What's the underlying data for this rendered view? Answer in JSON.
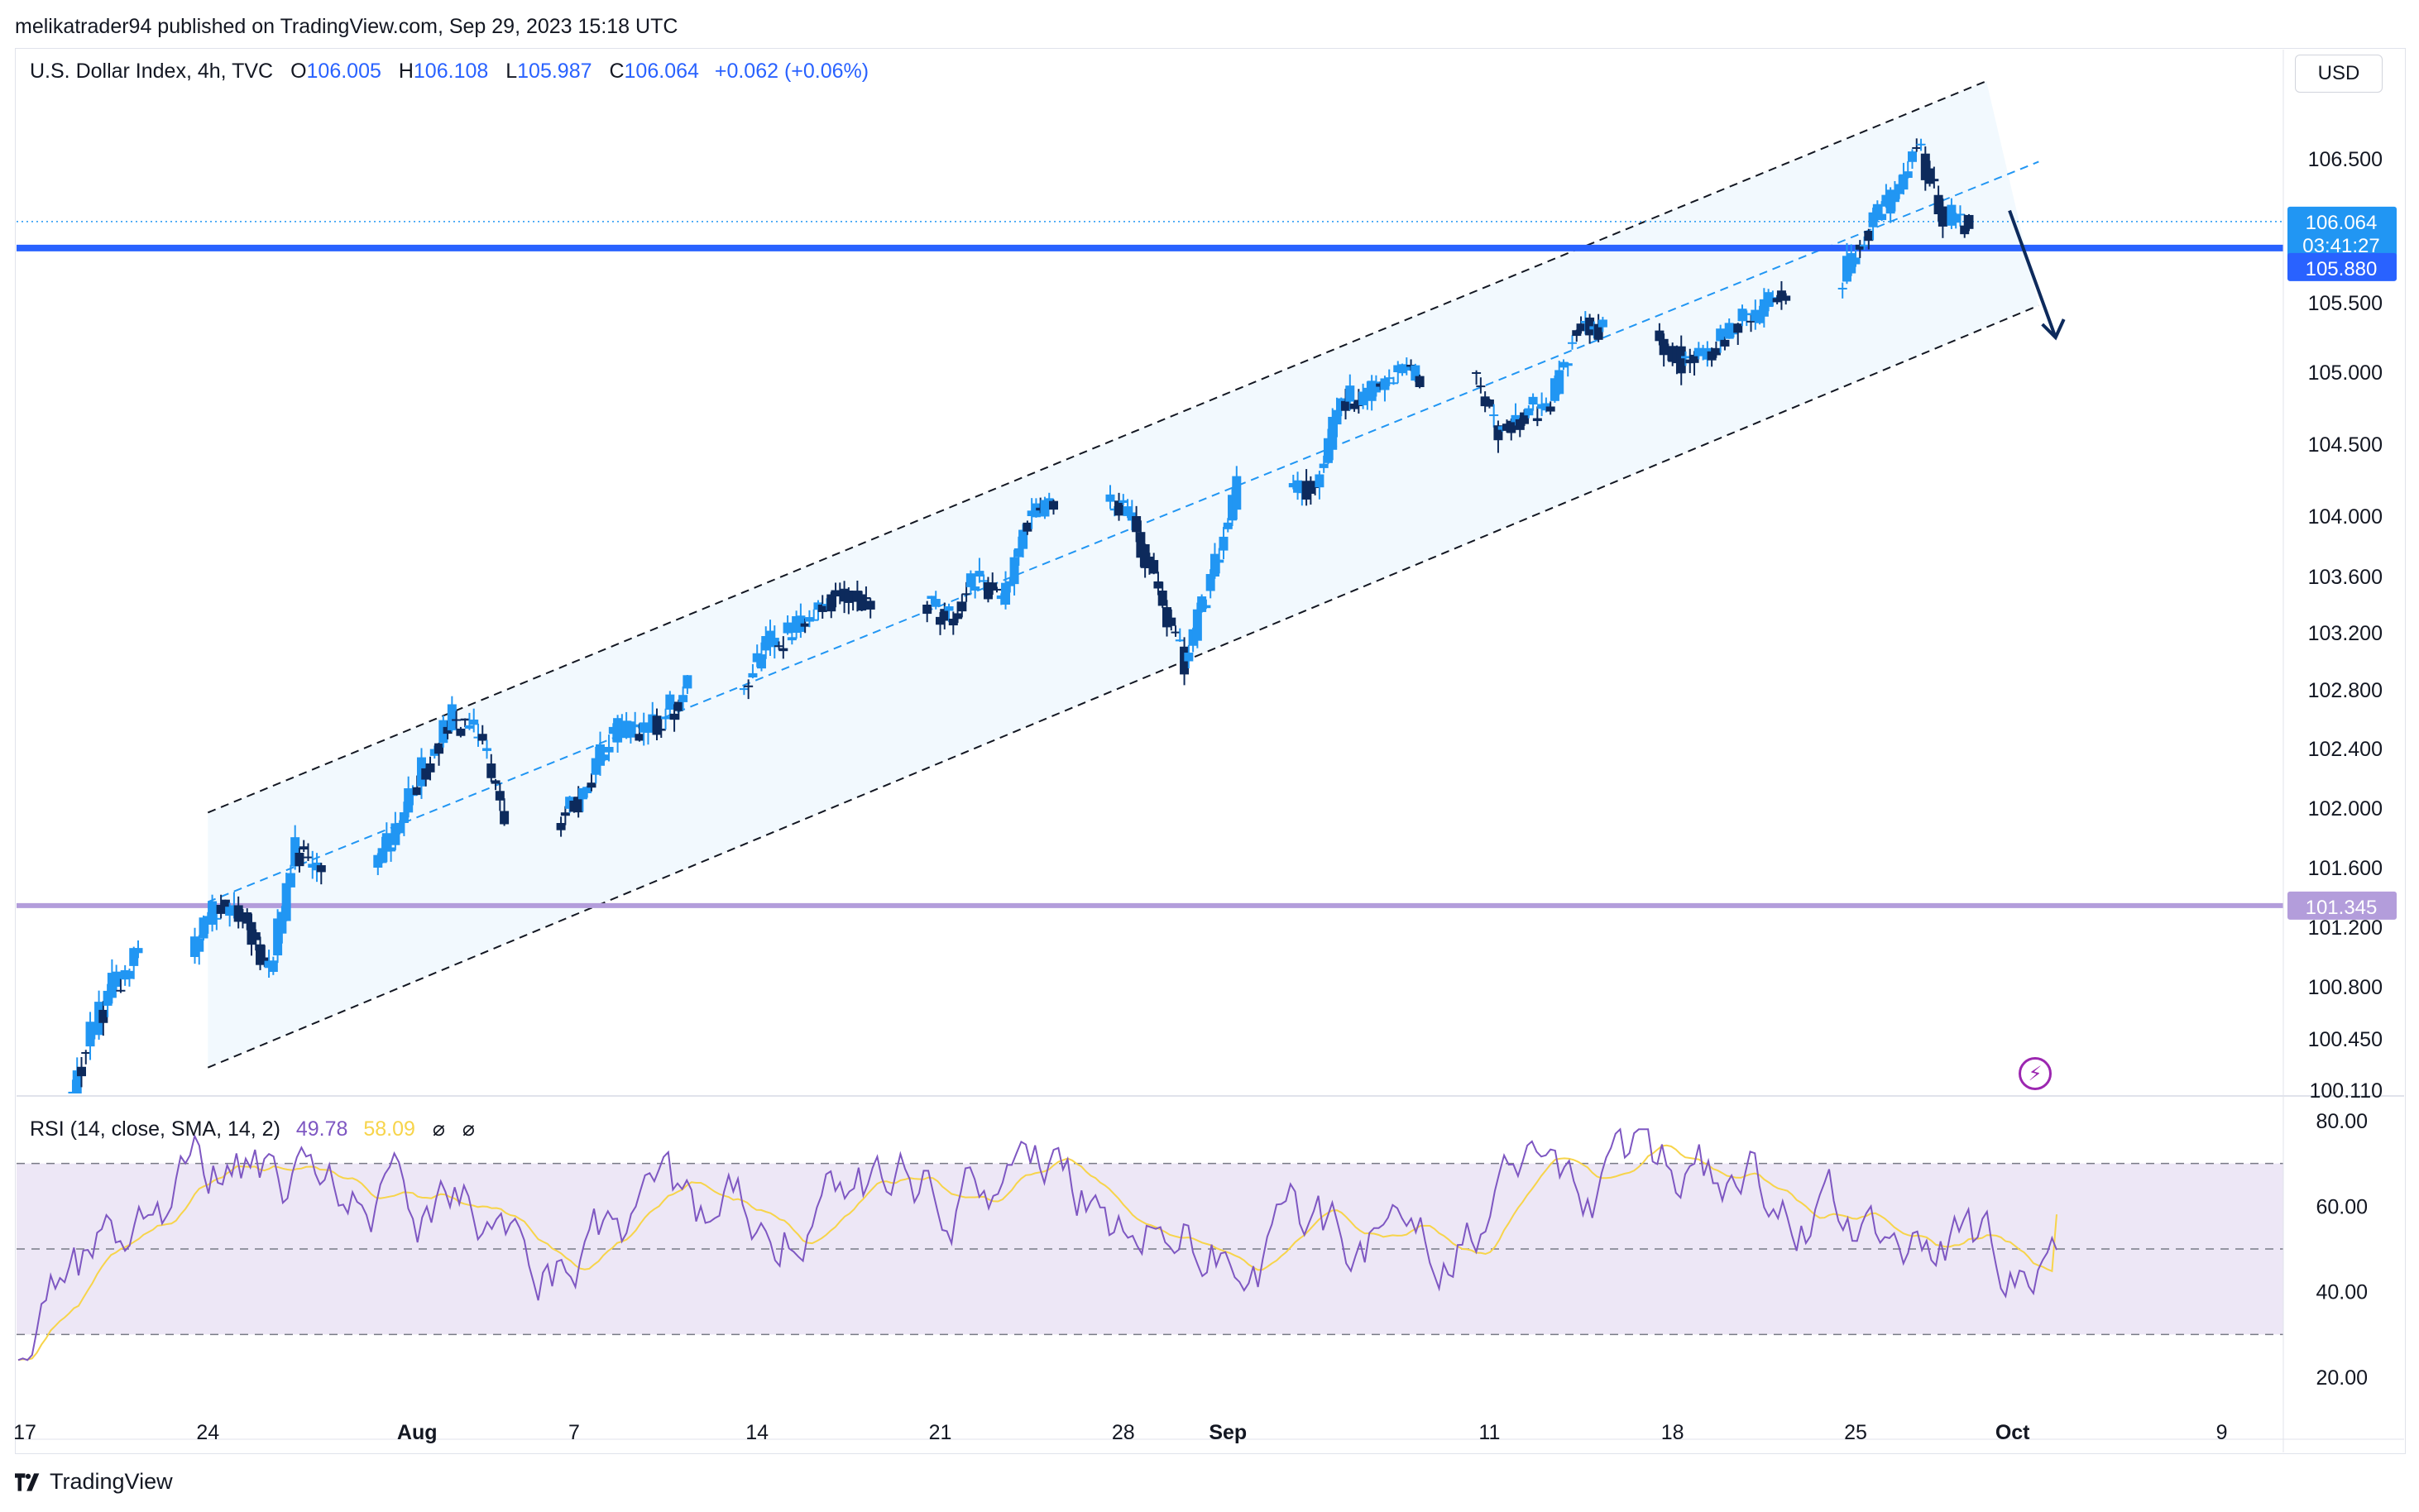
{
  "header": {
    "publish_line": "melikatrader94 published on TradingView.com, Sep 29, 2023 15:18 UTC"
  },
  "legend": {
    "symbol": "U.S. Dollar Index, 4h, TVC",
    "open_key": "O",
    "open": "106.005",
    "high_key": "H",
    "high": "106.108",
    "low_key": "L",
    "low": "105.987",
    "close_key": "C",
    "close": "106.064",
    "change": "+0.062 (+0.06%)"
  },
  "currency_button": "USD",
  "price_axis": {
    "ticks": [
      "106.500",
      "105.500",
      "105.000",
      "104.500",
      "104.000",
      "103.600",
      "103.200",
      "102.800",
      "102.400",
      "102.000",
      "101.600",
      "101.200",
      "100.800",
      "100.450",
      "100.110"
    ],
    "last_price_label": "106.064",
    "countdown_label": "03:41:27",
    "resistance_label": "105.880",
    "support_label": "101.345"
  },
  "rsi": {
    "title": "RSI (14, close, SMA, 14, 2)",
    "value": "49.78",
    "sma_value": "58.09",
    "hidden_1": "⌀",
    "hidden_2": "⌀",
    "axis_ticks": [
      "80.00",
      "60.00",
      "40.00",
      "20.00"
    ]
  },
  "time_axis": {
    "labels": [
      "17",
      "24",
      "Aug",
      "7",
      "14",
      "21",
      "28",
      "Sep",
      "11",
      "18",
      "25",
      "Oct",
      "9"
    ]
  },
  "brand": {
    "name": "TradingView"
  },
  "colors": {
    "up": "#2196f3",
    "down": "#0d2a5c",
    "resistance": "#2962ff",
    "support": "#b39ddb",
    "rsi_line": "#7e57c2",
    "rsi_sma": "#f7d44a",
    "channel_fill": "#e3f2fd",
    "rsi_band_fill": "#ede7f6"
  },
  "chart_data": {
    "type": "candlestick",
    "symbol": "U.S. Dollar Index",
    "timeframe": "4h",
    "x_range": [
      "2023-07-17",
      "2023-10-09"
    ],
    "y_range": [
      100.11,
      106.9
    ],
    "horizontal_levels": [
      {
        "price": 105.88,
        "label": "105.880",
        "color": "#2962ff"
      },
      {
        "price": 101.345,
        "label": "101.345",
        "color": "#b39ddb"
      }
    ],
    "last_price": 106.064,
    "channel": {
      "upper": [
        [
          "2023-07-24",
          101.97
        ],
        [
          "2023-09-30",
          107.04
        ]
      ],
      "middle": [
        [
          "2023-07-24",
          101.37
        ],
        [
          "2023-10-02",
          106.48
        ]
      ],
      "lower": [
        [
          "2023-07-24",
          100.26
        ],
        [
          "2023-10-02",
          105.48
        ]
      ]
    },
    "projection_arrow": [
      [
        "2023-09-30",
        106.06
      ],
      [
        "2023-10-01",
        105.25
      ]
    ],
    "daily_closes": [
      [
        "2023-07-18",
        99.85
      ],
      [
        "2023-07-19",
        100.4
      ],
      [
        "2023-07-20",
        100.8
      ],
      [
        "2023-07-21",
        101.0
      ],
      [
        "2023-07-24",
        101.35
      ],
      [
        "2023-07-25",
        101.3
      ],
      [
        "2023-07-26",
        100.9
      ],
      [
        "2023-07-27",
        101.7
      ],
      [
        "2023-07-28",
        101.6
      ],
      [
        "2023-07-31",
        101.9
      ],
      [
        "2023-08-01",
        102.3
      ],
      [
        "2023-08-02",
        102.6
      ],
      [
        "2023-08-03",
        102.5
      ],
      [
        "2023-08-04",
        101.9
      ],
      [
        "2023-08-07",
        102.1
      ],
      [
        "2023-08-08",
        102.5
      ],
      [
        "2023-08-09",
        102.5
      ],
      [
        "2023-08-10",
        102.6
      ],
      [
        "2023-08-11",
        102.8
      ],
      [
        "2023-08-14",
        103.1
      ],
      [
        "2023-08-15",
        103.2
      ],
      [
        "2023-08-16",
        103.4
      ],
      [
        "2023-08-17",
        103.5
      ],
      [
        "2023-08-18",
        103.4
      ],
      [
        "2023-08-21",
        103.3
      ],
      [
        "2023-08-22",
        103.6
      ],
      [
        "2023-08-23",
        103.4
      ],
      [
        "2023-08-24",
        104.0
      ],
      [
        "2023-08-25",
        104.1
      ],
      [
        "2023-08-28",
        104.0
      ],
      [
        "2023-08-29",
        103.5
      ],
      [
        "2023-08-30",
        103.0
      ],
      [
        "2023-08-31",
        103.6
      ],
      [
        "2023-09-01",
        104.2
      ],
      [
        "2023-09-04",
        104.2
      ],
      [
        "2023-09-05",
        104.8
      ],
      [
        "2023-09-06",
        104.8
      ],
      [
        "2023-09-07",
        105.0
      ],
      [
        "2023-09-08",
        105.0
      ],
      [
        "2023-09-11",
        104.6
      ],
      [
        "2023-09-12",
        104.7
      ],
      [
        "2023-09-13",
        104.8
      ],
      [
        "2023-09-14",
        105.35
      ],
      [
        "2023-09-15",
        105.3
      ],
      [
        "2023-09-18",
        105.1
      ],
      [
        "2023-09-19",
        105.15
      ],
      [
        "2023-09-20",
        105.35
      ],
      [
        "2023-09-21",
        105.4
      ],
      [
        "2023-09-22",
        105.6
      ],
      [
        "2023-09-25",
        106.0
      ],
      [
        "2023-09-26",
        106.2
      ],
      [
        "2023-09-27",
        106.6
      ],
      [
        "2023-09-28",
        106.1
      ],
      [
        "2023-09-29",
        106.06
      ]
    ],
    "rsi_series": {
      "name": "RSI (14, close, SMA, 14, 2)",
      "y_range": [
        20,
        80
      ],
      "bands": [
        30,
        50,
        70
      ],
      "last_rsi": 49.78,
      "last_sma": 58.09
    }
  }
}
